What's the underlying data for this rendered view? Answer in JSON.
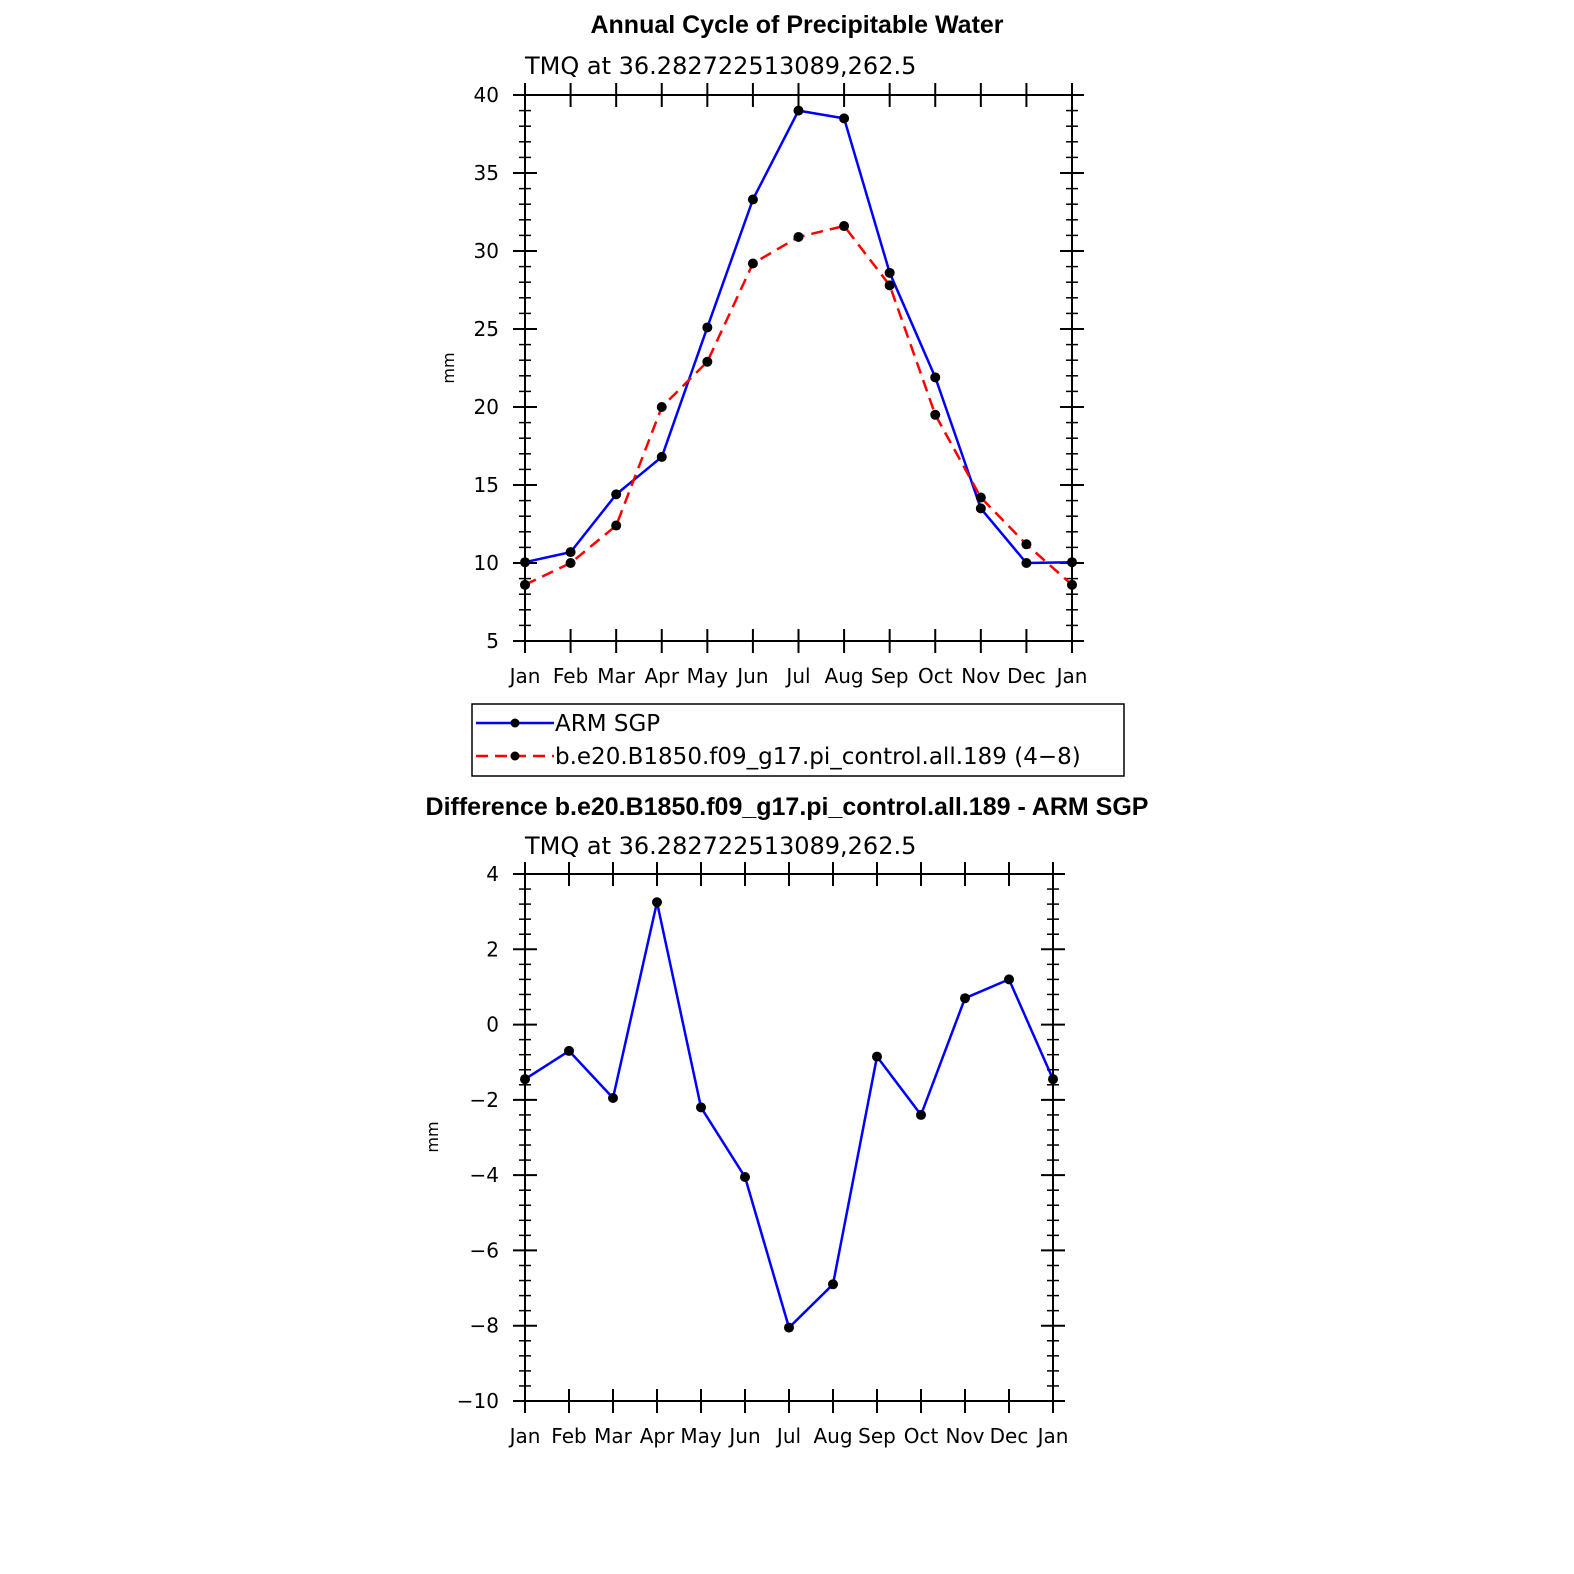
{
  "chart_data": [
    {
      "type": "line",
      "title": "Annual Cycle of Precipitable Water",
      "subtitle": "TMQ  at  36.282722513089,262.5",
      "xlabel": "",
      "ylabel": "mm",
      "categories": [
        "Jan",
        "Feb",
        "Mar",
        "Apr",
        "May",
        "Jun",
        "Jul",
        "Aug",
        "Sep",
        "Oct",
        "Nov",
        "Dec",
        "Jan"
      ],
      "ylim": [
        5,
        40
      ],
      "yticks": [
        "5",
        "10",
        "15",
        "20",
        "25",
        "30",
        "35",
        "40"
      ],
      "grid": false,
      "legend": "below",
      "series": [
        {
          "name": "ARM  SGP",
          "color": "#0000ff",
          "dash": "solid",
          "marker": "dot",
          "values": [
            10.05,
            10.7,
            14.4,
            16.8,
            25.1,
            33.3,
            39.0,
            38.5,
            28.6,
            21.9,
            13.5,
            10.0,
            10.05
          ]
        },
        {
          "name": "b.e20.B1850.f09_g17.pi_control.all.189  (4−8)",
          "color": "#ff0000",
          "dash": "dashed",
          "marker": "dot",
          "values": [
            8.6,
            10.0,
            12.4,
            20.0,
            22.9,
            29.2,
            30.9,
            31.6,
            27.8,
            19.5,
            14.2,
            11.2,
            8.6
          ]
        }
      ]
    },
    {
      "type": "line",
      "title": "Difference b.e20.B1850.f09_g17.pi_control.all.189 - ARM SGP",
      "subtitle": "TMQ  at  36.282722513089,262.5",
      "xlabel": "",
      "ylabel": "mm",
      "categories": [
        "Jan",
        "Feb",
        "Mar",
        "Apr",
        "May",
        "Jun",
        "Jul",
        "Aug",
        "Sep",
        "Oct",
        "Nov",
        "Dec",
        "Jan"
      ],
      "ylim": [
        -10,
        4
      ],
      "yticks": [
        "−10",
        "−8",
        "−6",
        "−4",
        "−2",
        "0",
        "2",
        "4"
      ],
      "grid": false,
      "series": [
        {
          "color": "#0000ff",
          "dash": "solid",
          "marker": "dot",
          "values": [
            -1.45,
            -0.7,
            -1.95,
            3.25,
            -2.2,
            -4.05,
            -8.05,
            -6.9,
            -0.85,
            -2.4,
            0.7,
            1.2,
            -1.45
          ]
        }
      ]
    }
  ]
}
